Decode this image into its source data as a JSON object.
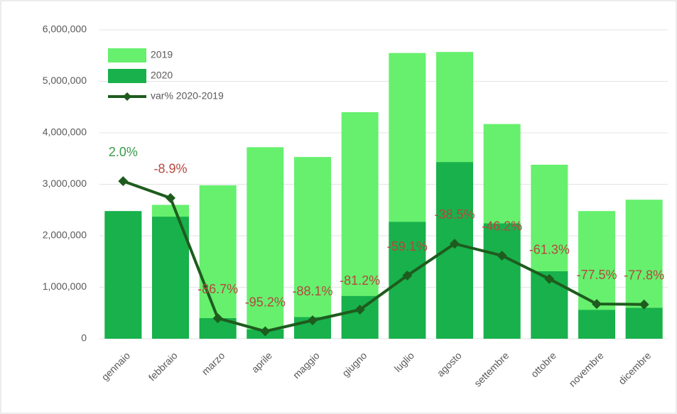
{
  "chart_data": {
    "type": "bar_line",
    "categories": [
      "gennaio",
      "febbraio",
      "marzo",
      "aprile",
      "maggio",
      "giugno",
      "luglio",
      "agosto",
      "settembre",
      "ottobre",
      "novembre",
      "dicembre"
    ],
    "series": [
      {
        "name": "2019",
        "color": "#66f06e",
        "values": [
          2430000,
          2600000,
          2980000,
          3720000,
          3530000,
          4400000,
          5550000,
          5570000,
          4170000,
          3380000,
          2480000,
          2700000
        ]
      },
      {
        "name": "2020",
        "color": "#18b14c",
        "values": [
          2480000,
          2370000,
          400000,
          180000,
          420000,
          830000,
          2270000,
          3430000,
          2240000,
          1310000,
          560000,
          600000
        ]
      },
      {
        "name": "var% 2020-2019",
        "color": "#1e5c1e",
        "axis": "y2",
        "type": "line",
        "values": [
          2.0,
          -8.9,
          -86.7,
          -95.2,
          -88.1,
          -81.2,
          -59.1,
          -38.5,
          -46.2,
          -61.3,
          -77.5,
          -77.8
        ],
        "value_labels": [
          "2.0%",
          "-8.9%",
          "-86.7%",
          "-95.2%",
          "-88.1%",
          "-81.2%",
          "-59.1%",
          "-38.5%",
          "-46.2%",
          "-61.3%",
          "-77.5%",
          "-77.8%"
        ]
      }
    ],
    "ylim": [
      0,
      6000000
    ],
    "yticks": [
      0,
      {
        "value": 1000000,
        "label": "1,000,000"
      },
      {
        "value": 2000000,
        "label": "2,000,000"
      },
      {
        "value": 3000000,
        "label": "3,000,000"
      },
      {
        "value": 4000000,
        "label": "4,000,000"
      },
      {
        "value": 5000000,
        "label": "5,000,000"
      },
      {
        "value": 6000000,
        "label": "6,000,000"
      }
    ],
    "y2lim": [
      -100,
      100
    ],
    "grid": true
  }
}
